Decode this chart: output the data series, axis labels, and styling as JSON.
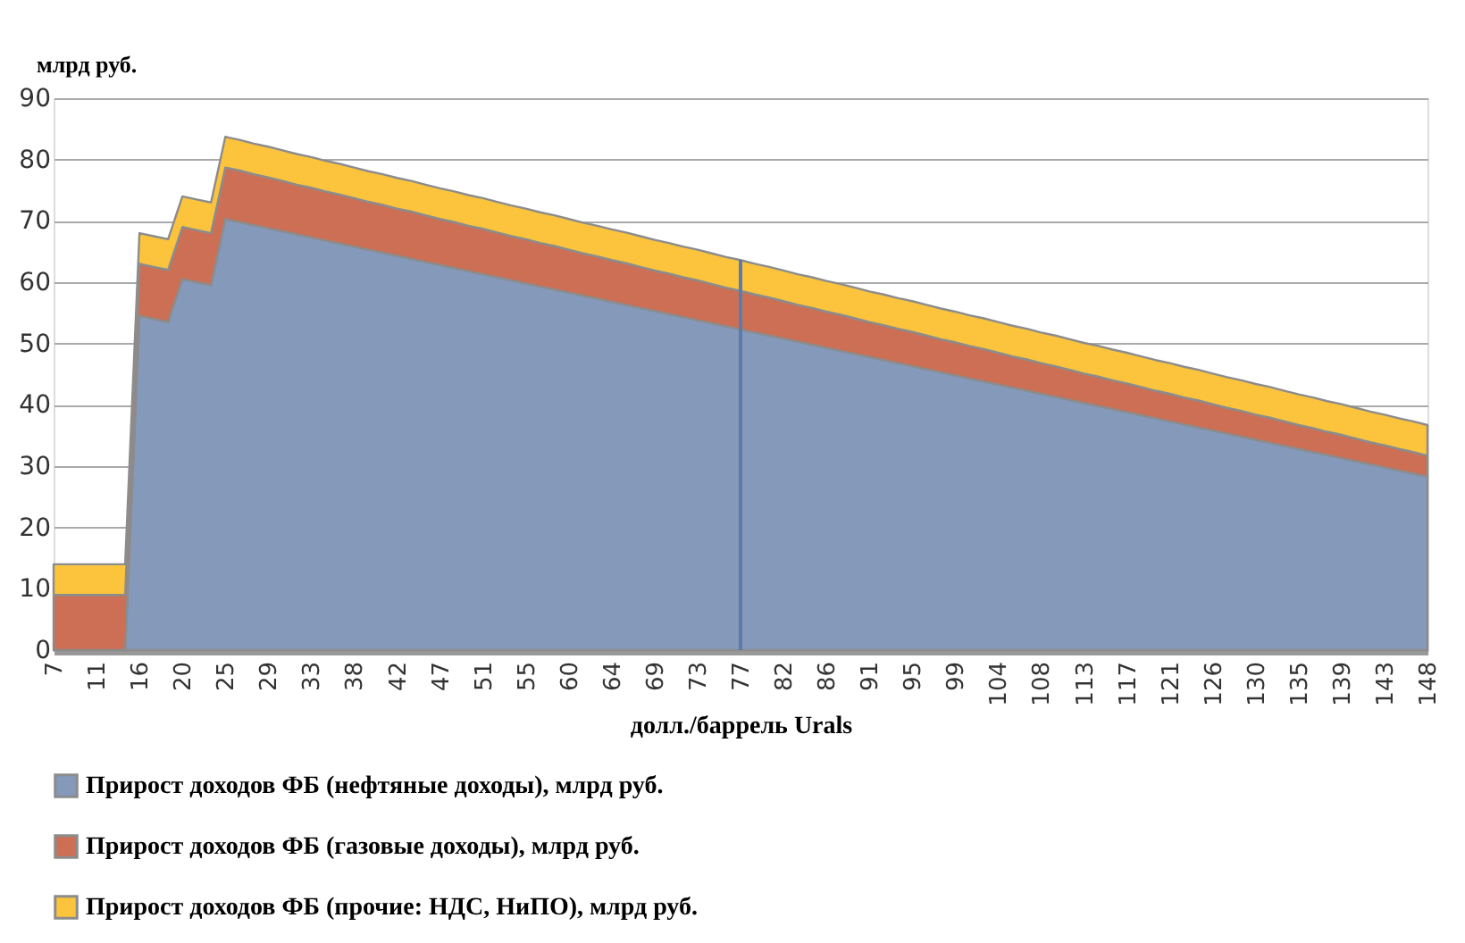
{
  "chart_data": {
    "type": "area",
    "stacked": true,
    "ylabel": "млрд руб.",
    "xlabel": "долл./баррель Urals",
    "categories": [
      "7",
      null,
      null,
      "11",
      null,
      null,
      "16",
      null,
      null,
      "20",
      null,
      null,
      "25",
      null,
      null,
      "29",
      null,
      null,
      "33",
      null,
      null,
      "38",
      null,
      null,
      "42",
      null,
      null,
      "47",
      null,
      null,
      "51",
      null,
      null,
      "55",
      null,
      null,
      "60",
      null,
      null,
      "64",
      null,
      null,
      "69",
      null,
      null,
      "73",
      null,
      null,
      "77",
      null,
      null,
      "82",
      null,
      null,
      "86",
      null,
      null,
      "91",
      null,
      null,
      "95",
      null,
      null,
      "99",
      null,
      null,
      "104",
      null,
      null,
      "108",
      null,
      null,
      "113",
      null,
      null,
      "117",
      null,
      null,
      "121",
      null,
      null,
      "126",
      null,
      null,
      "130",
      null,
      null,
      "135",
      null,
      null,
      "139",
      null,
      null,
      "143",
      null,
      null,
      "148"
    ],
    "ylim": [
      0,
      90
    ],
    "yticks": [
      0,
      10,
      20,
      30,
      40,
      50,
      60,
      70,
      80,
      90
    ],
    "grid": "y",
    "legend": "bottom",
    "series": [
      {
        "name": "Прирост доходов ФБ (нефтяные доходы), млрд руб.",
        "color": "#8599bb",
        "values": [
          0,
          0,
          0,
          0,
          0,
          0,
          54.5,
          54.0,
          53.5,
          60.5,
          60.0,
          59.5,
          70.3,
          69.8,
          69.3,
          68.8,
          68.3,
          67.8,
          67.3,
          66.8,
          66.3,
          65.8,
          65.3,
          64.8,
          64.3,
          63.8,
          63.3,
          62.8,
          62.3,
          61.8,
          61.3,
          60.8,
          60.3,
          59.8,
          59.3,
          58.8,
          58.3,
          57.8,
          57.3,
          56.8,
          56.3,
          55.8,
          55.3,
          54.8,
          54.3,
          53.8,
          53.3,
          52.8,
          52.3,
          51.8,
          51.3,
          50.8,
          50.3,
          49.8,
          49.3,
          48.8,
          48.3,
          47.8,
          47.3,
          46.8,
          46.3,
          45.8,
          45.3,
          44.8,
          44.3,
          43.8,
          43.3,
          42.8,
          42.3,
          41.8,
          41.3,
          40.8,
          40.3,
          39.8,
          39.3,
          38.8,
          38.3,
          37.8,
          37.3,
          36.8,
          36.3,
          35.8,
          35.3,
          34.8,
          34.3,
          33.8,
          33.3,
          32.8,
          32.3,
          31.8,
          31.3,
          30.8,
          30.3,
          29.8,
          29.3,
          28.8,
          28.3
        ]
      },
      {
        "name": "Прирост доходов ФБ (газовые доходы), млрд руб.",
        "color": "#cc6f55",
        "values": [
          9,
          9,
          9,
          9,
          9,
          9,
          8.5,
          8.5,
          8.5,
          8.5,
          8.5,
          8.5,
          8.4,
          8.4,
          8.3,
          8.3,
          8.2,
          8.1,
          8.1,
          8.0,
          8.0,
          7.9,
          7.8,
          7.8,
          7.7,
          7.7,
          7.6,
          7.5,
          7.5,
          7.4,
          7.4,
          7.3,
          7.2,
          7.2,
          7.1,
          7.1,
          7.0,
          6.9,
          6.9,
          6.8,
          6.8,
          6.7,
          6.6,
          6.6,
          6.5,
          6.5,
          6.4,
          6.3,
          6.3,
          6.2,
          6.2,
          6.1,
          6.0,
          6.0,
          5.9,
          5.9,
          5.8,
          5.7,
          5.7,
          5.6,
          5.6,
          5.5,
          5.4,
          5.4,
          5.3,
          5.3,
          5.2,
          5.1,
          5.1,
          5.0,
          5.0,
          4.9,
          4.8,
          4.8,
          4.7,
          4.7,
          4.6,
          4.5,
          4.5,
          4.4,
          4.4,
          4.3,
          4.2,
          4.2,
          4.1,
          4.1,
          4.0,
          3.9,
          3.9,
          3.8,
          3.8,
          3.7,
          3.6,
          3.6,
          3.5,
          3.5,
          3.4
        ]
      },
      {
        "name": "Прирост доходов ФБ (прочие: НДС, НиПО), млрд руб.",
        "color": "#fbc43c",
        "values": [
          5,
          5,
          5,
          5,
          5,
          5,
          5,
          5,
          5,
          5,
          5,
          5,
          5,
          5,
          5,
          5,
          5,
          5,
          5,
          5,
          5,
          5,
          5,
          5,
          5,
          5,
          5,
          5,
          5,
          5,
          5,
          5,
          5,
          5,
          5,
          5,
          5,
          5,
          5,
          5,
          5,
          5,
          5,
          5,
          5,
          5,
          5,
          5,
          5,
          5,
          5,
          5,
          5,
          5,
          5,
          5,
          5,
          5,
          5,
          5,
          5,
          5,
          5,
          5,
          5,
          5,
          5,
          5,
          5,
          5,
          5,
          5,
          5,
          5,
          5,
          5,
          5,
          5,
          5,
          5,
          5,
          5,
          5,
          5,
          5,
          5,
          5,
          5,
          5,
          5,
          5,
          5,
          5,
          5,
          5,
          5,
          5
        ]
      }
    ],
    "ref_lines": [
      {
        "axis": "x",
        "value": "77",
        "color": "#5b7cab"
      }
    ]
  }
}
